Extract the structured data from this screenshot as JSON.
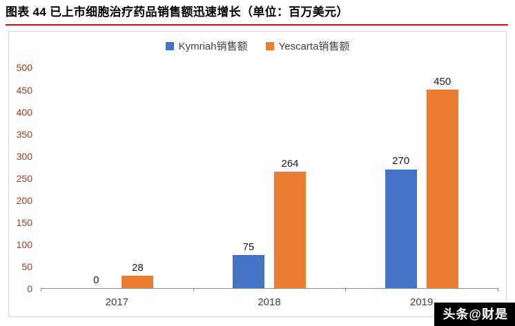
{
  "header": {
    "title": "图表 44 已上市细胞治疗药品销售额迅速增长（单位：百万美元）"
  },
  "colors": {
    "divider": "#FF0000",
    "y_axis_label": "#A83A18",
    "x_axis_label": "#404040",
    "data_label": "#1A1A1A",
    "axis_line": "#8C8C8C",
    "chart_border": "#D9D9D9",
    "series_kymriah": "#4472C4",
    "series_yescarta": "#ED7D31",
    "watermark_bg": "#000000",
    "watermark_text": "#FFFFFF"
  },
  "chart_data": {
    "type": "bar",
    "title": "已上市细胞治疗药品销售额",
    "unit": "百万美元",
    "categories": [
      "2017",
      "2018",
      "2019"
    ],
    "series": [
      {
        "name": "Kymriah销售额",
        "color": "#4472C4",
        "values": [
          0,
          75,
          270
        ]
      },
      {
        "name": "Yescarta销售额",
        "color": "#ED7D31",
        "values": [
          28,
          264,
          450
        ]
      }
    ],
    "ylim": [
      0,
      500
    ],
    "ytick_step": 50,
    "grid": false,
    "legend_position": "top",
    "data_labels": true
  },
  "watermark": {
    "text": "头条@财是"
  }
}
